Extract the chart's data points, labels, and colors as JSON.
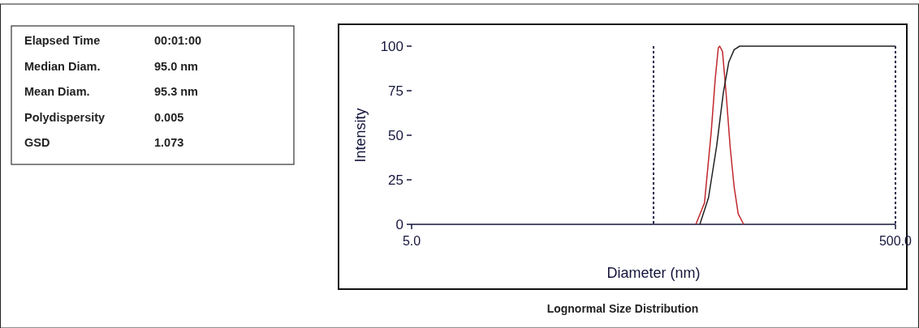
{
  "chart_data": [
    {
      "type": "other",
      "annotations": [
        "Elapsed Time",
        "00:01:00",
        "Median Diam.",
        "95.0 nm",
        "Mean Diam.",
        "95.3 nm",
        "Polydispersity",
        "0.005",
        "GSD",
        "1.073"
      ]
    },
    {
      "type": "line",
      "title": "Lognormal Size Distribution",
      "xlabel": "Diameter (nm)",
      "ylabel": "Intensity",
      "log": "x",
      "xlim": [
        5,
        500
      ],
      "xticks": [
        {
          "value": 5,
          "label": "5.0"
        },
        {
          "value": 500,
          "label": "500.0"
        }
      ],
      "ylim": [
        0,
        100
      ],
      "yticks": [
        0,
        25,
        50,
        75,
        100
      ],
      "grid": false,
      "marker": "none",
      "line_style": "solid",
      "series": [
        {
          "color": "#c0282d",
          "x": [
            74.8,
            81.2,
            86.6,
            90.0,
            92.6,
            93.9,
            96.4,
            99.7,
            103.6,
            107.7,
            111.9,
            117.9
          ],
          "values": [
            0,
            12,
            52,
            82,
            99,
            100,
            97,
            74,
            44,
            21,
            6,
            0
          ]
        },
        {
          "color": "#222222",
          "x": [
            77.7,
            84.4,
            91.2,
            97.2,
            102.3,
            107.7,
            113.5,
            500
          ],
          "values": [
            0,
            15,
            44,
            74,
            91,
            98,
            100,
            100
          ]
        }
      ],
      "ref_lines": [
        {
          "axis": "x",
          "value": 50,
          "color": "#1a1a4a",
          "line_style": "dotted"
        },
        {
          "axis": "x",
          "value": 500,
          "color": "#1a1a4a",
          "line_style": "dotted"
        }
      ]
    }
  ]
}
